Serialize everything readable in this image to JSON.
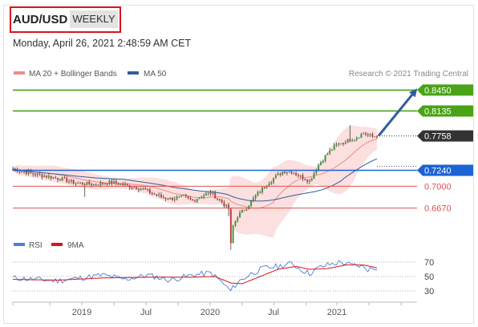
{
  "header": {
    "symbol": "AUD/USD",
    "period": "WEEKLY",
    "datetime": "Monday, April 26, 2021 2:48:59 AM CET"
  },
  "legend": {
    "bollinger": {
      "label": "MA 20 + Bollinger Bands",
      "color": "#f08b8b"
    },
    "ma50": {
      "label": "MA 50",
      "color": "#2f5e9e"
    },
    "rsi": {
      "label": "RSI",
      "color": "#4a7fd4"
    },
    "rsi_ma": {
      "label": "9MA",
      "color": "#d9141e"
    }
  },
  "credit": "Research © 2021 Trading Central",
  "chart_data": {
    "type": "candlestick",
    "y_range": [
      0.64,
      0.86
    ],
    "x_tick_labels": [
      "2019",
      "Jul",
      "2020",
      "Jul",
      "2021"
    ],
    "levels": [
      {
        "value": "0.8450",
        "kind": "resistance",
        "color": "#4aa316"
      },
      {
        "value": "0.8135",
        "kind": "resistance",
        "color": "#4aa316"
      },
      {
        "value": "0.7758",
        "kind": "last-price",
        "color": "#333333"
      },
      {
        "value": "0.7240",
        "kind": "pivot",
        "color": "#1c63d6"
      },
      {
        "value": "0.7000",
        "kind": "support",
        "color": "#e05050"
      },
      {
        "value": "0.6670",
        "kind": "support",
        "color": "#e05050"
      }
    ],
    "price_path": [
      [
        0,
        0.726
      ],
      [
        10,
        0.718
      ],
      [
        20,
        0.712
      ],
      [
        28,
        0.705
      ],
      [
        36,
        0.703
      ],
      [
        44,
        0.706
      ],
      [
        52,
        0.7
      ],
      [
        58,
        0.696
      ],
      [
        62,
        0.689
      ],
      [
        66,
        0.684
      ],
      [
        70,
        0.681
      ],
      [
        76,
        0.684
      ],
      [
        80,
        0.678
      ],
      [
        84,
        0.686
      ],
      [
        88,
        0.69
      ],
      [
        92,
        0.679
      ],
      [
        96,
        0.666
      ],
      [
        97,
        0.612
      ],
      [
        98,
        0.64
      ],
      [
        100,
        0.655
      ],
      [
        104,
        0.668
      ],
      [
        108,
        0.685
      ],
      [
        112,
        0.7
      ],
      [
        116,
        0.712
      ],
      [
        120,
        0.722
      ],
      [
        124,
        0.722
      ],
      [
        128,
        0.715
      ],
      [
        132,
        0.708
      ],
      [
        136,
        0.732
      ],
      [
        140,
        0.75
      ],
      [
        144,
        0.762
      ],
      [
        148,
        0.768
      ],
      [
        152,
        0.772
      ],
      [
        156,
        0.78
      ],
      [
        160,
        0.775
      ],
      [
        162,
        0.776
      ]
    ],
    "rsi": {
      "levels": [
        70,
        50,
        30
      ],
      "y_range": [
        20,
        80
      ],
      "rsi_path": [
        [
          0,
          48
        ],
        [
          10,
          46
        ],
        [
          20,
          44
        ],
        [
          30,
          48
        ],
        [
          40,
          52
        ],
        [
          50,
          46
        ],
        [
          60,
          52
        ],
        [
          70,
          45
        ],
        [
          80,
          52
        ],
        [
          88,
          55
        ],
        [
          92,
          45
        ],
        [
          97,
          30
        ],
        [
          100,
          42
        ],
        [
          106,
          54
        ],
        [
          112,
          62
        ],
        [
          118,
          64
        ],
        [
          124,
          68
        ],
        [
          128,
          60
        ],
        [
          132,
          54
        ],
        [
          136,
          62
        ],
        [
          140,
          66
        ],
        [
          146,
          70
        ],
        [
          150,
          66
        ],
        [
          154,
          65
        ],
        [
          158,
          60
        ],
        [
          162,
          62
        ]
      ],
      "ma_path": [
        [
          0,
          46
        ],
        [
          20,
          45
        ],
        [
          40,
          48
        ],
        [
          60,
          49
        ],
        [
          80,
          49
        ],
        [
          90,
          50
        ],
        [
          97,
          41
        ],
        [
          102,
          40
        ],
        [
          110,
          50
        ],
        [
          118,
          60
        ],
        [
          126,
          64
        ],
        [
          132,
          60
        ],
        [
          140,
          61
        ],
        [
          148,
          66
        ],
        [
          156,
          66
        ],
        [
          162,
          62
        ]
      ]
    }
  }
}
